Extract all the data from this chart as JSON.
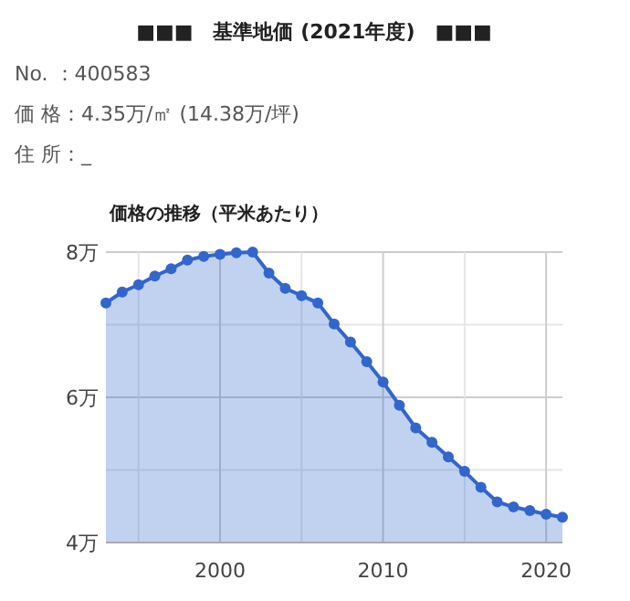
{
  "chart_data": {
    "type": "area",
    "title": "■■■　基準地価 (2021年度)　■■■",
    "subtitle": "価格の推移（平米あたり）",
    "annotations": [
      "No. ：400583",
      "価 格：4.35万/㎡ (14.38万/坪)",
      "住 所：_"
    ],
    "x": [
      1993,
      1994,
      1995,
      1996,
      1997,
      1998,
      1999,
      2000,
      2001,
      2002,
      2003,
      2004,
      2005,
      2006,
      2007,
      2008,
      2009,
      2010,
      2011,
      2012,
      2013,
      2014,
      2015,
      2016,
      2017,
      2018,
      2019,
      2020,
      2021
    ],
    "series": [
      {
        "color": "#3366cc",
        "values": [
          7.3,
          7.45,
          7.55,
          7.67,
          7.77,
          7.89,
          7.94,
          7.97,
          7.99,
          8.0,
          7.71,
          7.5,
          7.4,
          7.3,
          7.01,
          6.76,
          6.49,
          6.21,
          5.89,
          5.58,
          5.38,
          5.18,
          4.98,
          4.76,
          4.56,
          4.49,
          4.44,
          4.39,
          4.35
        ]
      }
    ],
    "xlim": [
      1993,
      2021
    ],
    "xticks": [
      {
        "value": 1995,
        "label": null
      },
      2000,
      {
        "value": 2005,
        "label": null
      },
      2010,
      {
        "value": 2015,
        "label": null
      },
      2020
    ],
    "ylim": [
      4,
      8
    ],
    "yticks": [
      {
        "value": 4,
        "label": "4万"
      },
      {
        "value": 5,
        "label": null
      },
      {
        "value": 6,
        "label": "6万"
      },
      {
        "value": 7,
        "label": null
      },
      {
        "value": 8,
        "label": "8万"
      }
    ],
    "grid": true,
    "marker": "circle",
    "line_style": "solid"
  }
}
